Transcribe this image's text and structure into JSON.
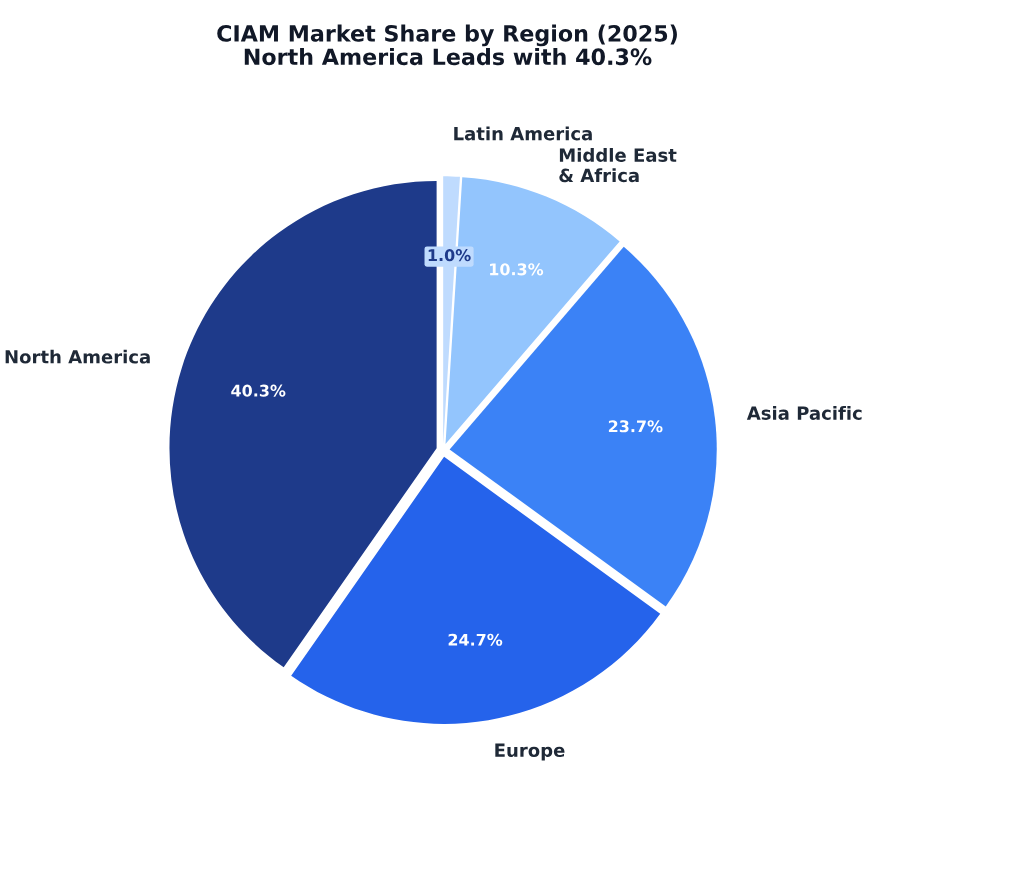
{
  "chart_data": {
    "type": "pie",
    "title": "CIAM Market Share by Region (2025)\nNorth America Leads with 40.3%",
    "categories": [
      "Latin America",
      "Middle East\n& Africa",
      "Asia Pacific",
      "Europe",
      "North America"
    ],
    "values": [
      1.0,
      10.3,
      23.7,
      24.7,
      40.3
    ],
    "colors": [
      "#bfdbfe",
      "#93c5fd",
      "#3b82f6",
      "#2563eb",
      "#1e3a8a"
    ],
    "value_labels": [
      "1.0%",
      "10.3%",
      "23.7%",
      "24.7%",
      "40.3%"
    ]
  }
}
